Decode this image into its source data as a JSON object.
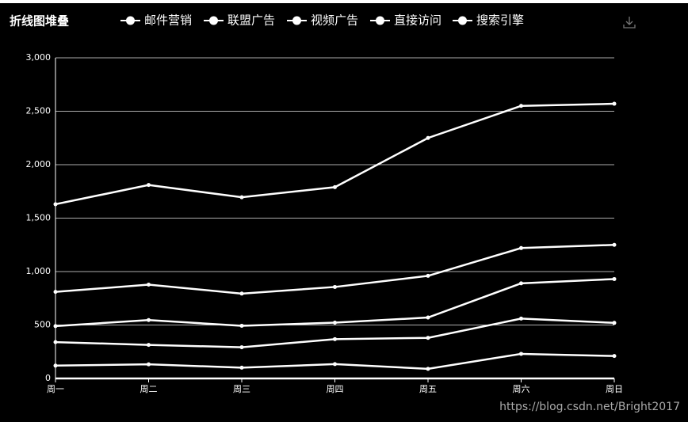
{
  "chart_data": {
    "type": "line",
    "title": "折线图堆叠",
    "stacked": true,
    "grid": true,
    "categories": [
      "周一",
      "周二",
      "周三",
      "周四",
      "周五",
      "周六",
      "周日"
    ],
    "series": [
      {
        "name": "邮件营销",
        "color": "#ffffff",
        "values": [
          120,
          132,
          101,
          134,
          90,
          230,
          210
        ]
      },
      {
        "name": "联盟广告",
        "color": "#ffffff",
        "values": [
          220,
          182,
          191,
          234,
          290,
          330,
          310
        ]
      },
      {
        "name": "视频广告",
        "color": "#ffffff",
        "values": [
          150,
          232,
          201,
          154,
          190,
          330,
          410
        ]
      },
      {
        "name": "直接访问",
        "color": "#ffffff",
        "values": [
          320,
          332,
          301,
          334,
          390,
          330,
          320
        ]
      },
      {
        "name": "搜索引擎",
        "color": "#ffffff",
        "values": [
          820,
          932,
          901,
          934,
          1290,
          1330,
          1320
        ]
      }
    ],
    "ylim": [
      0,
      3000
    ],
    "yticks": [
      0,
      500,
      {
        "value": 1000,
        "label": "1,000"
      },
      {
        "value": 1500,
        "label": "1,500"
      },
      {
        "value": 2000,
        "label": "2,000"
      },
      {
        "value": 2500,
        "label": "2,500"
      },
      {
        "value": 3000,
        "label": "3,000"
      }
    ]
  },
  "watermark": "https://blog.csdn.net/Bright2017"
}
